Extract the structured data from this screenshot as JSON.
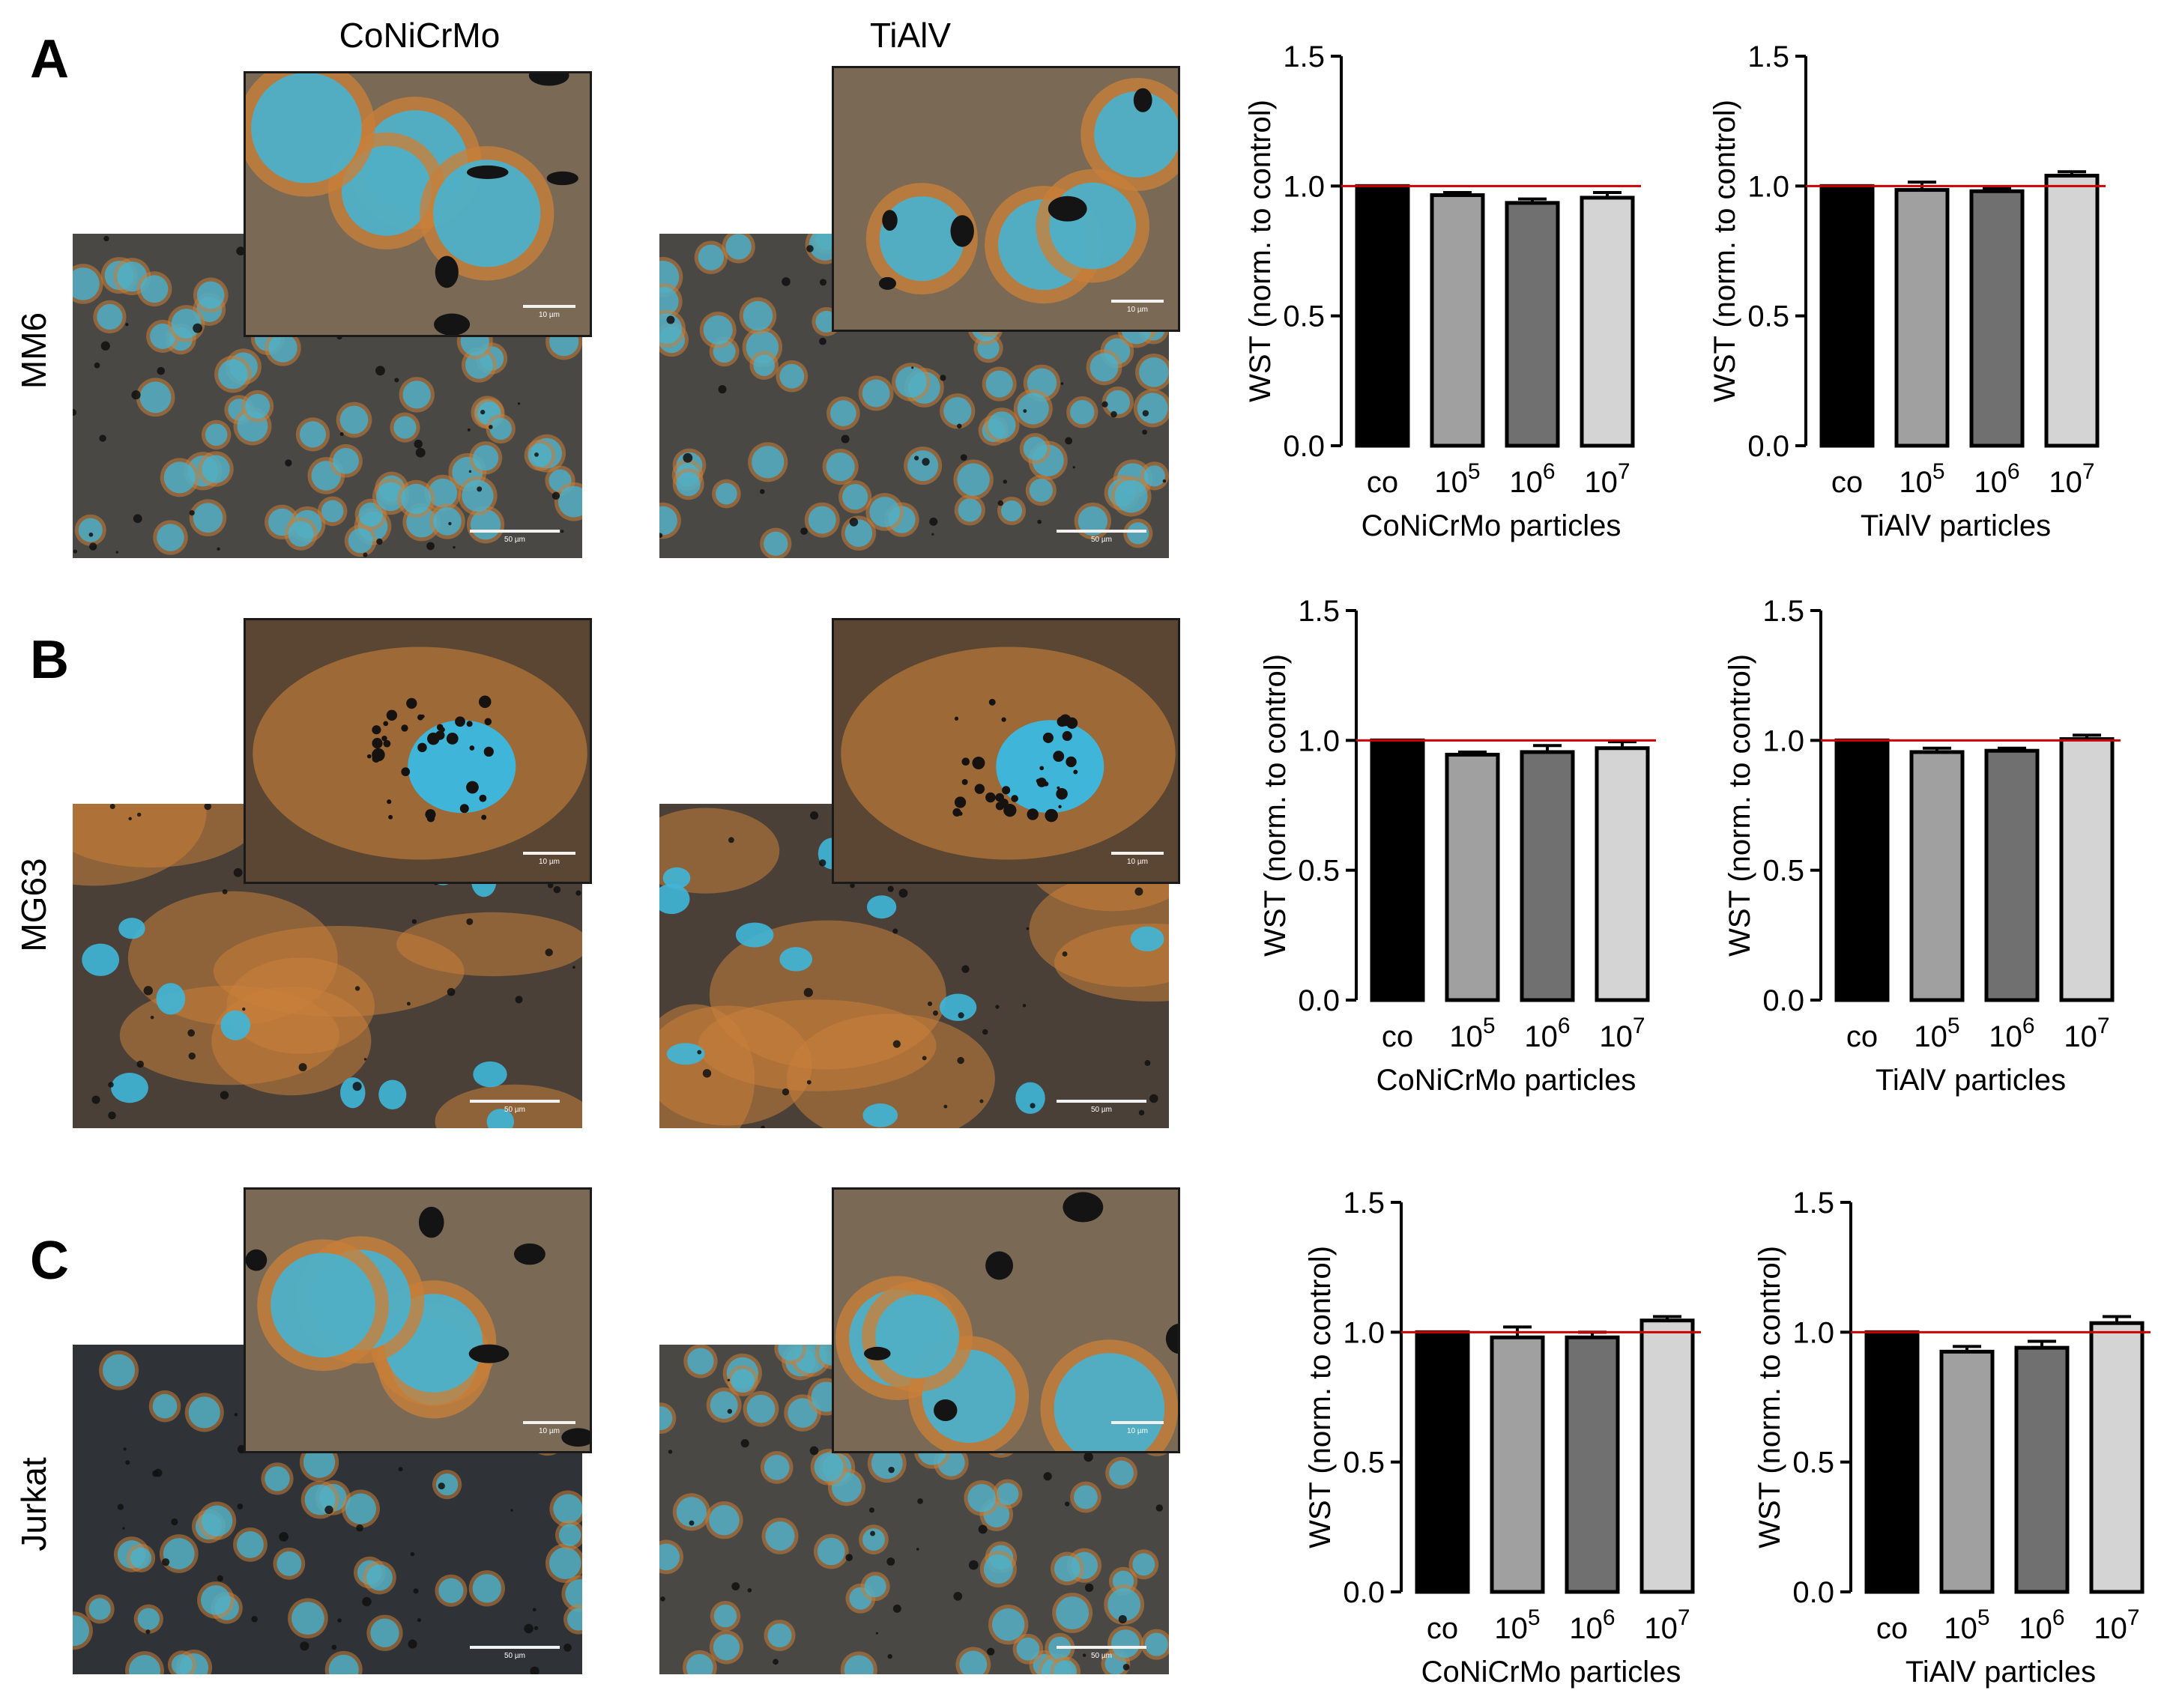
{
  "column_headers": [
    "CoNiCrMo",
    "TiAlV"
  ],
  "rows": [
    {
      "letter": "A",
      "cell_line": "MM6"
    },
    {
      "letter": "B",
      "cell_line": "MG63"
    },
    {
      "letter": "C",
      "cell_line": "Jurkat"
    }
  ],
  "micrographs": [
    {
      "id": "a-conicrmo",
      "main_scale": "50 µm",
      "inset_scale": "10 µm"
    },
    {
      "id": "a-tialv",
      "main_scale": "50 µm",
      "inset_scale": "10 µm"
    },
    {
      "id": "b-conicrmo",
      "main_scale": "50 µm",
      "inset_scale": "10 µm"
    },
    {
      "id": "b-tialv",
      "main_scale": "50 µm",
      "inset_scale": "10 µm"
    },
    {
      "id": "c-conicrmo",
      "main_scale": "50 µm",
      "inset_scale": "10 µm"
    },
    {
      "id": "c-tialv",
      "main_scale": "50 µm",
      "inset_scale": "10 µm"
    }
  ],
  "colors": {
    "bar_co": "#000000",
    "bar_1e5": "#a0a0a0",
    "bar_1e6": "#707070",
    "bar_1e7": "#d4d4d4",
    "reference_line": "#cc0000",
    "cytoplasm": "#c8803a",
    "nuclei": "#3fb6d9",
    "background": "#4a4540"
  },
  "chart_data": [
    {
      "id": "a-conicrmo",
      "type": "bar",
      "categories": [
        "co",
        "10^5",
        "10^6",
        "10^7"
      ],
      "values": [
        1.0,
        0.965,
        0.935,
        0.955
      ],
      "errors": [
        0,
        0.01,
        0.015,
        0.02
      ],
      "ylabel": "WST (norm. to control)",
      "xlabel": "CoNiCrMo particles",
      "ylim": [
        0,
        1.5
      ],
      "yticks": [
        "0.0",
        "0.5",
        "1.0",
        "1.5"
      ],
      "reference_line": 1.0
    },
    {
      "id": "a-tialv",
      "type": "bar",
      "categories": [
        "co",
        "10^5",
        "10^6",
        "10^7"
      ],
      "values": [
        1.0,
        0.985,
        0.98,
        1.04
      ],
      "errors": [
        0,
        0.03,
        0.01,
        0.015
      ],
      "ylabel": "WST (norm. to control)",
      "xlabel": "TiAlV particles",
      "ylim": [
        0,
        1.5
      ],
      "yticks": [
        "0.0",
        "0.5",
        "1.0",
        "1.5"
      ],
      "reference_line": 1.0
    },
    {
      "id": "b-conicrmo",
      "type": "bar",
      "categories": [
        "co",
        "10^5",
        "10^6",
        "10^7"
      ],
      "values": [
        1.0,
        0.945,
        0.955,
        0.97
      ],
      "errors": [
        0,
        0.01,
        0.025,
        0.025
      ],
      "ylabel": "WST (norm. to control)",
      "xlabel": "CoNiCrMo particles",
      "ylim": [
        0,
        1.5
      ],
      "yticks": [
        "0.0",
        "0.5",
        "1.0",
        "1.5"
      ],
      "reference_line": 1.0
    },
    {
      "id": "b-tialv",
      "type": "bar",
      "categories": [
        "co",
        "10^5",
        "10^6",
        "10^7"
      ],
      "values": [
        1.0,
        0.955,
        0.96,
        1.005
      ],
      "errors": [
        0,
        0.015,
        0.01,
        0.015
      ],
      "ylabel": "WST (norm. to control)",
      "xlabel": "TiAlV particles",
      "ylim": [
        0,
        1.5
      ],
      "yticks": [
        "0.0",
        "0.5",
        "1.0",
        "1.5"
      ],
      "reference_line": 1.0
    },
    {
      "id": "c-conicrmo",
      "type": "bar",
      "categories": [
        "co",
        "10^5",
        "10^6",
        "10^7"
      ],
      "values": [
        1.0,
        0.98,
        0.98,
        1.045
      ],
      "errors": [
        0,
        0.04,
        0.02,
        0.015
      ],
      "ylabel": "WST (norm. to control)",
      "xlabel": "CoNiCrMo particles",
      "ylim": [
        0,
        1.5
      ],
      "yticks": [
        "0.0",
        "0.5",
        "1.0",
        "1.5"
      ],
      "reference_line": 1.0
    },
    {
      "id": "c-tialv",
      "type": "bar",
      "categories": [
        "co",
        "10^5",
        "10^6",
        "10^7"
      ],
      "values": [
        1.0,
        0.925,
        0.94,
        1.035
      ],
      "errors": [
        0,
        0.02,
        0.025,
        0.025
      ],
      "ylabel": "WST (norm. to control)",
      "xlabel": "TiAlV particles",
      "ylim": [
        0,
        1.5
      ],
      "yticks": [
        "0.0",
        "0.5",
        "1.0",
        "1.5"
      ],
      "reference_line": 1.0
    }
  ]
}
